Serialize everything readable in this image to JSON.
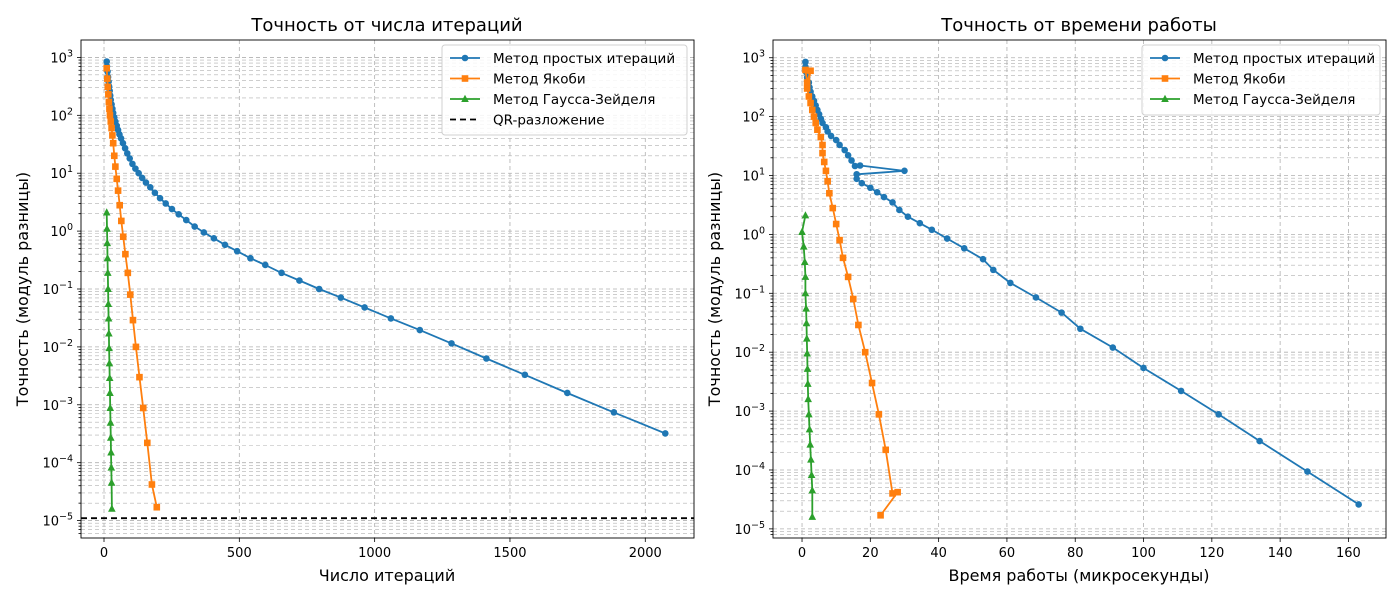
{
  "chart_data": [
    {
      "type": "line",
      "title": "Точность от числа итераций",
      "xlabel": "Число итераций",
      "ylabel": "Точность (модуль разницы)",
      "xlim": [
        -85,
        2180
      ],
      "ylim": [
        5e-06,
        2000
      ],
      "yscale": "log",
      "xticks": [
        0,
        500,
        1000,
        1500,
        2000
      ],
      "yticks_exp": [
        -5,
        -4,
        -3,
        -2,
        -1,
        0,
        1,
        2,
        3
      ],
      "grid": true,
      "legend_position": "top-right",
      "series": [
        {
          "name": "Метод простых итераций",
          "color": "#1f77b4",
          "marker": "circle",
          "x": [
            10,
            11,
            13,
            15,
            17,
            19,
            21,
            23,
            25,
            28,
            31,
            34,
            38,
            42,
            47,
            52,
            57,
            63,
            70,
            78,
            86,
            95,
            105,
            116,
            128,
            141,
            155,
            171,
            188,
            207,
            228,
            251,
            276,
            304,
            335,
            369,
            406,
            447,
            492,
            541,
            596,
            656,
            722,
            795,
            875,
            963,
            1060,
            1167,
            1284,
            1413,
            1555,
            1712,
            1884,
            2074
          ],
          "y": [
            850,
            700,
            570,
            460,
            380,
            315,
            265,
            220,
            185,
            155,
            130,
            110,
            92,
            78,
            66,
            56,
            47,
            40,
            33,
            27,
            22,
            18,
            14.5,
            12,
            10,
            8.3,
            6.9,
            5.7,
            4.6,
            3.7,
            3.0,
            2.4,
            1.95,
            1.55,
            1.2,
            0.95,
            0.75,
            0.58,
            0.45,
            0.34,
            0.26,
            0.19,
            0.14,
            0.1,
            0.071,
            0.048,
            0.031,
            0.0195,
            0.0115,
            0.0063,
            0.0033,
            0.0016,
            0.00074,
            0.00032
          ]
        },
        {
          "name": "Метод Якоби",
          "color": "#ff7f0e",
          "marker": "square",
          "x": [
            10,
            12,
            14,
            16,
            18,
            20,
            22,
            25,
            28,
            31,
            34,
            38,
            42,
            47,
            52,
            58,
            64,
            71,
            79,
            88,
            97,
            107,
            118,
            131,
            145,
            160,
            177,
            195
          ],
          "y": [
            650,
            430,
            310,
            230,
            170,
            130,
            100,
            78,
            60,
            45,
            33,
            20,
            13,
            8.0,
            5.0,
            2.8,
            1.5,
            0.8,
            0.4,
            0.19,
            0.08,
            0.029,
            0.01,
            0.003,
            0.00088,
            0.00022,
            4.2e-05,
            1.7e-05
          ]
        },
        {
          "name": "Метод Гаусса-Зейделя",
          "color": "#2ca02c",
          "marker": "triangle",
          "x": [
            10,
            11,
            12,
            13,
            14,
            15,
            16,
            17,
            18,
            19,
            20,
            21,
            22,
            23,
            24,
            25,
            26,
            27,
            28,
            29
          ],
          "y": [
            2.1,
            1.1,
            0.62,
            0.34,
            0.19,
            0.1,
            0.055,
            0.031,
            0.017,
            0.0095,
            0.0052,
            0.0029,
            0.0016,
            0.00088,
            0.00049,
            0.00027,
            0.00015,
            8.2e-05,
            4.5e-05,
            1.6e-05
          ]
        },
        {
          "name": "QR-разложение",
          "color": "#000000",
          "style": "dashed",
          "hline": 1.1e-05
        }
      ]
    },
    {
      "type": "line",
      "title": "Точность от времени работы",
      "xlabel": "Время работы (микросекунды)",
      "ylabel": "Точность (модуль разницы)",
      "xlim": [
        -8.5,
        171
      ],
      "ylim": [
        7e-06,
        2000
      ],
      "yscale": "log",
      "xticks": [
        0,
        20,
        40,
        60,
        80,
        100,
        120,
        140,
        160
      ],
      "yticks_exp": [
        -5,
        -4,
        -3,
        -2,
        -1,
        0,
        1,
        2,
        3
      ],
      "grid": true,
      "legend_position": "top-right",
      "series": [
        {
          "name": "Метод простых итераций",
          "color": "#1f77b4",
          "marker": "circle",
          "x": [
            1.0,
            1.0,
            1.2,
            1.5,
            2.0,
            2.2,
            2.5,
            3.0,
            3.5,
            4.0,
            4.5,
            5.0,
            5.5,
            6.0,
            7.0,
            7.5,
            8.5,
            10.0,
            11.0,
            12.5,
            13.5,
            14.5,
            15.5,
            17.0,
            30.0,
            16.0,
            16.0,
            17.5,
            20.0,
            22.0,
            24.0,
            26.5,
            28.5,
            31.0,
            34.5,
            38.0,
            42.5,
            47.5,
            53.0,
            56.0,
            61.0,
            68.5,
            76.0,
            81.5,
            91.0,
            100.0,
            111.0,
            122.0,
            134.0,
            148.0,
            163.0
          ],
          "y": [
            850,
            700,
            570,
            460,
            380,
            315,
            265,
            220,
            185,
            155,
            130,
            110,
            92,
            78,
            66,
            56,
            47,
            40,
            33,
            27,
            22,
            18,
            14.5,
            14.8,
            12,
            10.5,
            8.8,
            7.4,
            6.2,
            5.2,
            4.3,
            3.5,
            2.6,
            2.0,
            1.55,
            1.2,
            0.85,
            0.58,
            0.38,
            0.25,
            0.15,
            0.085,
            0.047,
            0.025,
            0.012,
            0.0054,
            0.0022,
            0.00088,
            0.00031,
            9.4e-05,
            2.6e-05
          ]
        },
        {
          "name": "Метод Якоби",
          "color": "#ff7f0e",
          "marker": "square",
          "x": [
            1.0,
            1.5,
            2.5,
            1.5,
            2.0,
            2.5,
            3.0,
            3.5,
            4.0,
            4.5,
            5.5,
            6.0,
            6.0,
            6.5,
            7.0,
            7.5,
            8.0,
            9.0,
            10.0,
            11.0,
            12.0,
            13.5,
            15.0,
            16.5,
            18.5,
            20.5,
            22.5,
            24.5,
            26.5,
            28.0,
            23.0
          ],
          "y": [
            620,
            380,
            600,
            300,
            220,
            170,
            130,
            100,
            78,
            60,
            45,
            33,
            24,
            17,
            12,
            8.0,
            5.0,
            2.8,
            1.5,
            0.8,
            0.4,
            0.19,
            0.08,
            0.029,
            0.01,
            0.003,
            0.00088,
            0.00022,
            4e-05,
            4.2e-05,
            1.7e-05
          ]
        },
        {
          "name": "Метод Гаусса-Зейделя",
          "color": "#2ca02c",
          "marker": "triangle",
          "x": [
            1.0,
            0.0,
            0.5,
            0.8,
            1.0,
            1.0,
            1.2,
            1.3,
            1.4,
            1.5,
            1.6,
            1.7,
            1.8,
            2.0,
            2.2,
            2.4,
            2.6,
            2.8,
            3.0,
            3.0
          ],
          "y": [
            2.1,
            1.1,
            0.62,
            0.34,
            0.19,
            0.1,
            0.055,
            0.031,
            0.017,
            0.0095,
            0.0052,
            0.0029,
            0.0016,
            0.00088,
            0.00049,
            0.00027,
            0.00015,
            8.2e-05,
            4.5e-05,
            1.6e-05
          ]
        }
      ]
    }
  ]
}
